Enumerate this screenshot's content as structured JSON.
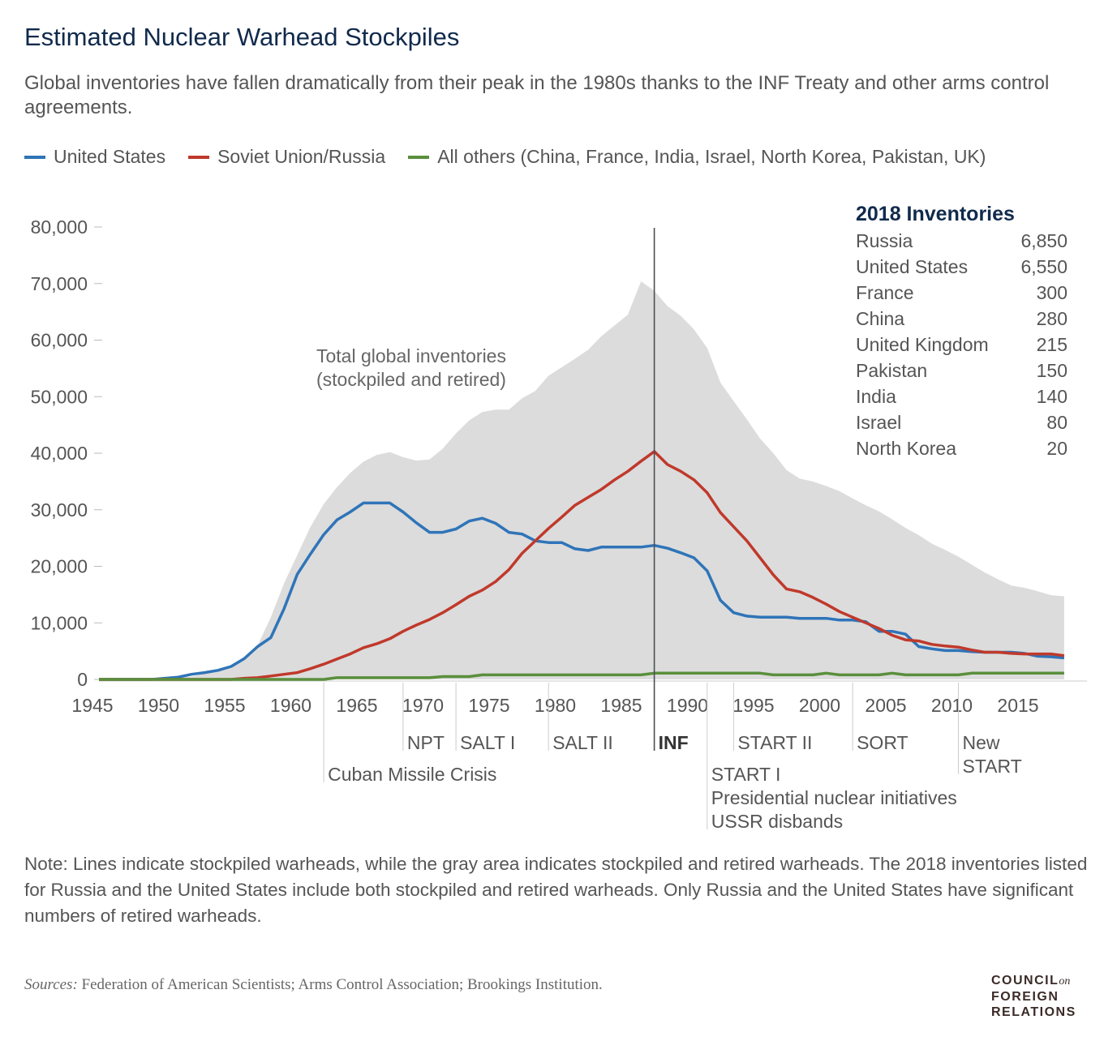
{
  "title": "Estimated Nuclear Warhead Stockpiles",
  "subtitle": "Global inventories have fallen dramatically from their peak in the 1980s thanks to the INF Treaty and other arms control agreements.",
  "note": "Note: Lines indicate stockpiled warheads, while the gray area indicates stockpiled and retired warheads. The 2018 inventories listed for Russia and the United States include both stockpiled and retired warheads. Only Russia and the United States have significant numbers of retired warheads.",
  "sources_label": "Sources:",
  "sources_text": " Federation of American Scientists; Arms Control Association; Brookings Institution.",
  "logo": {
    "line1": "COUNCIL",
    "on": "on",
    "line2": "FOREIGN",
    "line3": "RELATIONS"
  },
  "colors": {
    "us": "#2f74b8",
    "russia": "#c0392b",
    "others": "#5a8f3c",
    "area": "#dcdcdc",
    "title": "#102a4c"
  },
  "chart_data": {
    "type": "line",
    "xlim": [
      1945,
      2018
    ],
    "ylim": [
      0,
      80000
    ],
    "x_ticks": [
      "1945",
      "1950",
      "1955",
      "1960",
      "1965",
      "1970",
      "1975",
      "1980",
      "1985",
      "1990",
      "1995",
      "2000",
      "2005",
      "2010",
      "2015"
    ],
    "y_ticks": [
      "0",
      "10,000",
      "20,000",
      "30,000",
      "40,000",
      "50,000",
      "60,000",
      "70,000",
      "80,000"
    ],
    "grid": false,
    "legend_position": "top",
    "area_label": [
      "Total global inventories",
      "(stockpiled and retired)"
    ],
    "years_start": 1945,
    "area_values": [
      0,
      0,
      0,
      0,
      50,
      200,
      400,
      500,
      1000,
      1500,
      2500,
      4000,
      6000,
      11000,
      17000,
      22000,
      27000,
      31000,
      34000,
      36500,
      38500,
      39700,
      40200,
      39300,
      38700,
      38900,
      40800,
      43500,
      45800,
      47300,
      47700,
      47700,
      49700,
      51000,
      53700,
      55200,
      56700,
      58300,
      60700,
      62600,
      64500,
      70400,
      68700,
      66000,
      64300,
      61900,
      58600,
      52500,
      49200,
      46000,
      42600,
      40000,
      37000,
      35500,
      35000,
      34200,
      33300,
      32000,
      30800,
      29700,
      28300,
      26800,
      25500,
      24000,
      22900,
      21700,
      20300,
      18900,
      17700,
      16600,
      16200,
      15600,
      14900,
      14700
    ],
    "series": [
      {
        "name": "United States",
        "color": "#2f74b8",
        "values": [
          0,
          0,
          0,
          0,
          0,
          200,
          400,
          900,
          1200,
          1600,
          2300,
          3700,
          5800,
          7400,
          12500,
          18600,
          22200,
          25600,
          28200,
          29600,
          31200,
          31200,
          31200,
          29600,
          27700,
          26000,
          26000,
          26600,
          28000,
          28500,
          27600,
          26000,
          25700,
          24500,
          24200,
          24200,
          23100,
          22800,
          23400,
          23400,
          23400,
          23400,
          23700,
          23200,
          22400,
          21500,
          19200,
          14000,
          11800,
          11200,
          11000,
          11000,
          11000,
          10800,
          10800,
          10800,
          10500,
          10500,
          10200,
          8500,
          8500,
          8000,
          5800,
          5400,
          5100,
          5100,
          4900,
          4800,
          4800,
          4800,
          4600,
          4100,
          4000,
          3800
        ]
      },
      {
        "name": "Soviet Union/Russia",
        "color": "#c0392b",
        "values": [
          0,
          0,
          0,
          0,
          0,
          0,
          0,
          0,
          0,
          0,
          0,
          200,
          300,
          600,
          900,
          1200,
          1900,
          2700,
          3600,
          4500,
          5600,
          6300,
          7200,
          8500,
          9600,
          10600,
          11800,
          13200,
          14700,
          15800,
          17300,
          19400,
          22300,
          24500,
          26700,
          28700,
          30800,
          32200,
          33600,
          35300,
          36800,
          38600,
          40300,
          38000,
          36800,
          35300,
          33000,
          29500,
          27000,
          24500,
          21500,
          18500,
          16000,
          15500,
          14500,
          13300,
          12000,
          11000,
          10000,
          9000,
          7800,
          7000,
          6800,
          6200,
          5900,
          5700,
          5200,
          4800,
          4800,
          4600,
          4500,
          4500,
          4500,
          4200
        ]
      },
      {
        "name": "All others (China, France, India, Israel, North Korea, Pakistan, UK)",
        "color": "#5a8f3c",
        "values": [
          0,
          0,
          0,
          0,
          0,
          0,
          0,
          0,
          0,
          0,
          0,
          0,
          0,
          0,
          0,
          0,
          0,
          0,
          300,
          300,
          300,
          300,
          300,
          300,
          300,
          300,
          500,
          500,
          500,
          800,
          800,
          800,
          800,
          800,
          800,
          800,
          800,
          800,
          800,
          800,
          800,
          800,
          1100,
          1100,
          1100,
          1100,
          1100,
          1100,
          1100,
          1100,
          1100,
          800,
          800,
          800,
          800,
          1100,
          800,
          800,
          800,
          800,
          1100,
          800,
          800,
          800,
          800,
          800,
          1100,
          1100,
          1100,
          1100,
          1100,
          1100,
          1100,
          1100
        ]
      }
    ],
    "events": [
      {
        "year": 1962,
        "lines": [
          "Cuban Missile Crisis"
        ],
        "row": 2,
        "bold": false
      },
      {
        "year": 1968,
        "lines": [
          "NPT"
        ],
        "row": 1,
        "bold": false
      },
      {
        "year": 1972,
        "lines": [
          "SALT I"
        ],
        "row": 1,
        "bold": false
      },
      {
        "year": 1979,
        "lines": [
          "SALT II"
        ],
        "row": 1,
        "bold": false
      },
      {
        "year": 1987,
        "lines": [
          "INF"
        ],
        "row": 1,
        "bold": true
      },
      {
        "year": 1991,
        "lines": [
          "START I",
          "Presidential nuclear initiatives",
          "USSR disbands"
        ],
        "row": 2,
        "bold": false
      },
      {
        "year": 1993,
        "lines": [
          "START II"
        ],
        "row": 1,
        "bold": false
      },
      {
        "year": 2002,
        "lines": [
          "SORT"
        ],
        "row": 1,
        "bold": false
      },
      {
        "year": 2010,
        "lines": [
          "New",
          "START"
        ],
        "row": 1,
        "bold": false
      }
    ],
    "inventory_table": {
      "title": "2018 Inventories",
      "rows": [
        {
          "country": "Russia",
          "value": "6,850"
        },
        {
          "country": "United States",
          "value": "6,550"
        },
        {
          "country": "France",
          "value": "300"
        },
        {
          "country": "China",
          "value": "280"
        },
        {
          "country": "United Kingdom",
          "value": "215"
        },
        {
          "country": "Pakistan",
          "value": "150"
        },
        {
          "country": "India",
          "value": "140"
        },
        {
          "country": "Israel",
          "value": "80"
        },
        {
          "country": "North Korea",
          "value": "20"
        }
      ]
    }
  }
}
